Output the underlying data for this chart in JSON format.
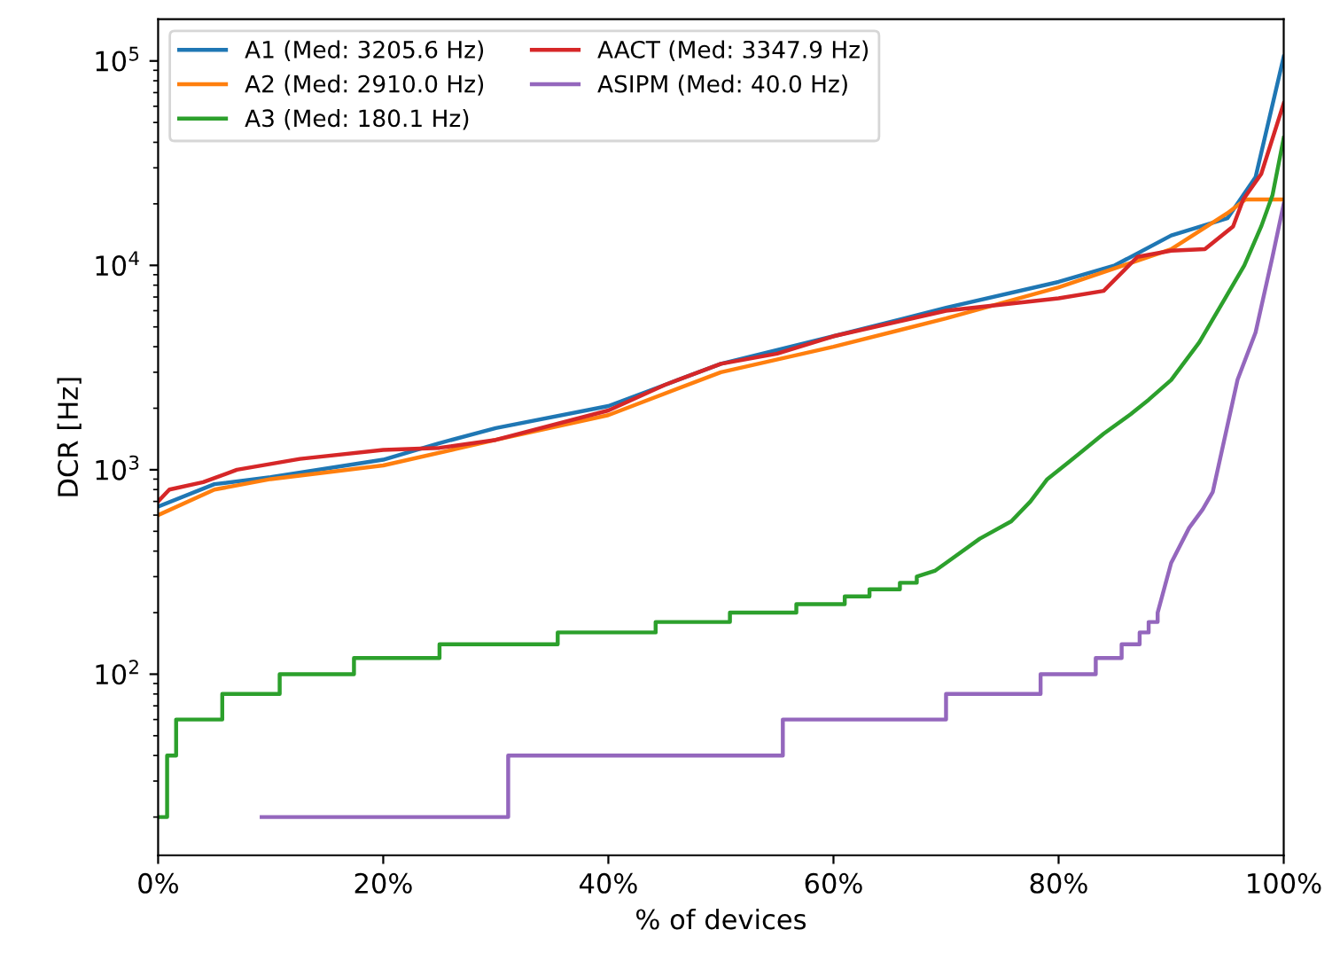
{
  "chart_data": {
    "type": "line",
    "xlabel": "% of devices",
    "ylabel": "DCR [Hz]",
    "log": "y",
    "xlim": [
      0,
      100
    ],
    "ylim": [
      13,
      160000
    ],
    "xticks": [
      {
        "value": 0,
        "label": "0%"
      },
      {
        "value": 20,
        "label": "20%"
      },
      {
        "value": 40,
        "label": "40%"
      },
      {
        "value": 60,
        "label": "60%"
      },
      {
        "value": 80,
        "label": "80%"
      },
      {
        "value": 100,
        "label": "100%"
      }
    ],
    "yticks": [
      {
        "value": 100,
        "label": "10$^{2}$"
      },
      {
        "value": 1000,
        "label": "10$^{3}$"
      },
      {
        "value": 10000,
        "label": "10$^{4}$"
      },
      {
        "value": 100000,
        "label": "10$^{5}$"
      }
    ],
    "grid": false,
    "legend": "top left",
    "line_style": "solid",
    "marker": "none",
    "series": [
      {
        "name": "A1 (Med: 3205.6 Hz)",
        "color": "#1f77b4",
        "x": [
          0,
          5,
          10,
          20,
          25,
          30,
          40,
          45,
          50,
          60,
          70,
          80,
          85,
          90,
          95,
          97.5,
          100
        ],
        "values": [
          660,
          850,
          920,
          1120,
          1350,
          1600,
          2050,
          2600,
          3300,
          4500,
          6200,
          8300,
          10000,
          14000,
          17000,
          27000,
          105000
        ]
      },
      {
        "name": "A2 (Med: 2910.0 Hz)",
        "color": "#ff7f0e",
        "x": [
          0,
          5,
          10,
          20,
          30,
          40,
          50,
          60,
          70,
          80,
          90,
          95,
          96.6,
          100
        ],
        "values": [
          600,
          800,
          900,
          1050,
          1400,
          1850,
          3000,
          4000,
          5500,
          7800,
          12000,
          18000,
          21000,
          21000
        ]
      },
      {
        "name": "A3 (Med: 180.1 Hz)",
        "color": "#2ca02c",
        "x": [
          0,
          0.8,
          0.8,
          1.6,
          1.6,
          5.7,
          5.7,
          10.8,
          10.8,
          17.4,
          17.4,
          25,
          25,
          35.5,
          35.5,
          44.2,
          44.2,
          50.8,
          50.8,
          56.7,
          56.7,
          61,
          61,
          63.2,
          63.2,
          65.9,
          65.9,
          67.4,
          67.4,
          69,
          70,
          73,
          75.8,
          77.5,
          79,
          81,
          84,
          86.4,
          88,
          90,
          92.5,
          94.8,
          96.5,
          98,
          99,
          100
        ],
        "values": [
          20,
          20,
          40,
          40,
          60,
          60,
          80,
          80,
          100,
          100,
          120,
          120,
          140,
          140,
          160,
          160,
          180,
          180,
          200,
          200,
          220,
          220,
          240,
          240,
          260,
          260,
          280,
          280,
          300,
          320,
          350,
          460,
          560,
          700,
          900,
          1100,
          1500,
          1870,
          2200,
          2750,
          4200,
          6900,
          10000,
          15500,
          22000,
          42000
        ]
      },
      {
        "name": "AACT (Med: 3347.9 Hz)",
        "color": "#d62728",
        "x": [
          0,
          1,
          4,
          7,
          12.6,
          20,
          25,
          30,
          40,
          45,
          50,
          55,
          60,
          70,
          80,
          84,
          87,
          90,
          93,
          95.5,
          96.4,
          98,
          100
        ],
        "values": [
          700,
          800,
          870,
          1000,
          1130,
          1250,
          1280,
          1400,
          1950,
          2600,
          3300,
          3700,
          4500,
          6000,
          6900,
          7500,
          11000,
          11800,
          12000,
          15500,
          21000,
          28000,
          62000
        ]
      },
      {
        "name": "ASIPM (Med: 40.0 Hz)",
        "color": "#9467bd",
        "x": [
          9.2,
          31.1,
          31.1,
          55.5,
          55.5,
          70,
          70,
          78.4,
          78.4,
          83.3,
          83.3,
          85.6,
          85.6,
          87.2,
          87.2,
          88,
          88,
          88.8,
          88.8,
          90,
          91.6,
          92.8,
          93.7,
          95.9,
          97.5,
          99,
          100
        ],
        "values": [
          20,
          20,
          40,
          40,
          60,
          60,
          80,
          80,
          100,
          100,
          120,
          120,
          140,
          140,
          160,
          160,
          180,
          180,
          200,
          350,
          520,
          640,
          780,
          2760,
          4700,
          11000,
          20000
        ]
      }
    ]
  }
}
